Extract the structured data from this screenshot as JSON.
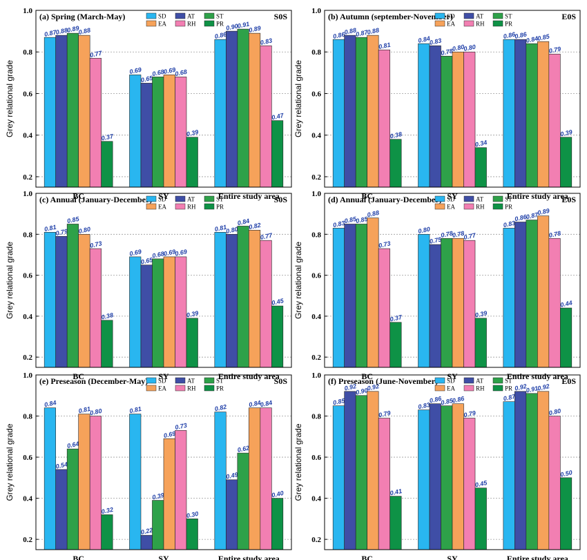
{
  "figure": {
    "series_names": [
      "SD",
      "AT",
      "ST",
      "EA",
      "RH",
      "PR"
    ],
    "colors": {
      "SD": "#29b6f0",
      "AT": "#3f4ea6",
      "ST": "#2ea149",
      "EA": "#f6a25a",
      "RH": "#f27fb2",
      "PR": "#0e9246"
    },
    "y_axis_label": "Grey relational grade",
    "y_ticks": [
      "0.2",
      "0.4",
      "0.6",
      "0.8",
      "1.0"
    ]
  },
  "chart_data": [
    {
      "type": "bar",
      "title": "(a)  Spring (March-May)",
      "tag": "S0S",
      "categories": [
        "BC",
        "SY",
        "Entire study area"
      ],
      "ylabel": "Grey relational grade",
      "ylim": [
        0.15,
        1.0
      ],
      "grid": true,
      "legend": "top-right",
      "series": [
        {
          "name": "SD",
          "values": [
            0.87,
            0.69,
            0.86
          ]
        },
        {
          "name": "AT",
          "values": [
            0.88,
            0.65,
            0.9
          ]
        },
        {
          "name": "ST",
          "values": [
            0.89,
            0.68,
            0.91
          ]
        },
        {
          "name": "EA",
          "values": [
            0.88,
            0.69,
            0.89
          ]
        },
        {
          "name": "RH",
          "values": [
            0.77,
            0.68,
            0.83
          ]
        },
        {
          "name": "PR",
          "values": [
            0.37,
            0.39,
            0.47
          ]
        }
      ]
    },
    {
      "type": "bar",
      "title": "(b)  Autumn (september-November)",
      "tag": "E0S",
      "categories": [
        "BC",
        "SY",
        "Entire study area"
      ],
      "ylabel": "Grey relational grade",
      "ylim": [
        0.15,
        1.0
      ],
      "grid": true,
      "legend": "top-right",
      "series": [
        {
          "name": "SD",
          "values": [
            0.86,
            0.84,
            0.86
          ]
        },
        {
          "name": "AT",
          "values": [
            0.88,
            0.83,
            0.86
          ]
        },
        {
          "name": "ST",
          "values": [
            0.87,
            0.78,
            0.84
          ]
        },
        {
          "name": "EA",
          "values": [
            0.88,
            0.8,
            0.85
          ]
        },
        {
          "name": "RH",
          "values": [
            0.81,
            0.8,
            0.79
          ]
        },
        {
          "name": "PR",
          "values": [
            0.38,
            0.34,
            0.39
          ]
        }
      ]
    },
    {
      "type": "bar",
      "title": "(c)  Annual (January-December)",
      "tag": "S0S",
      "categories": [
        "BC",
        "SY",
        "Entire study area"
      ],
      "ylabel": "Grey relational grade",
      "ylim": [
        0.15,
        1.0
      ],
      "grid": true,
      "legend": "top-right",
      "series": [
        {
          "name": "SD",
          "values": [
            0.81,
            0.69,
            0.81
          ]
        },
        {
          "name": "AT",
          "values": [
            0.79,
            0.65,
            0.8
          ]
        },
        {
          "name": "ST",
          "values": [
            0.85,
            0.68,
            0.84
          ]
        },
        {
          "name": "EA",
          "values": [
            0.8,
            0.69,
            0.82
          ]
        },
        {
          "name": "RH",
          "values": [
            0.73,
            0.69,
            0.77
          ]
        },
        {
          "name": "PR",
          "values": [
            0.38,
            0.39,
            0.45
          ]
        }
      ]
    },
    {
      "type": "bar",
      "title": "(d)  Annual (January-December)",
      "tag": "E0S",
      "categories": [
        "BC",
        "SY",
        "Entire study area"
      ],
      "ylabel": "Grey relational grade",
      "ylim": [
        0.15,
        1.0
      ],
      "grid": true,
      "legend": "top-right",
      "series": [
        {
          "name": "SD",
          "values": [
            0.83,
            0.8,
            0.83
          ]
        },
        {
          "name": "AT",
          "values": [
            0.85,
            0.75,
            0.86
          ]
        },
        {
          "name": "ST",
          "values": [
            0.85,
            0.78,
            0.87
          ]
        },
        {
          "name": "EA",
          "values": [
            0.88,
            0.78,
            0.89
          ]
        },
        {
          "name": "RH",
          "values": [
            0.73,
            0.77,
            0.78
          ]
        },
        {
          "name": "PR",
          "values": [
            0.37,
            0.39,
            0.44
          ]
        }
      ]
    },
    {
      "type": "bar",
      "title": "(e)  Preseason (December-May)",
      "tag": "S0S",
      "categories": [
        "BC",
        "SY",
        "Entire study area"
      ],
      "ylabel": "Grey relational grade",
      "ylim": [
        0.15,
        1.0
      ],
      "grid": true,
      "legend": "top-right",
      "series": [
        {
          "name": "SD",
          "values": [
            0.84,
            0.81,
            0.82
          ]
        },
        {
          "name": "AT",
          "values": [
            0.54,
            0.22,
            0.49
          ]
        },
        {
          "name": "ST",
          "values": [
            0.64,
            0.39,
            0.62
          ]
        },
        {
          "name": "EA",
          "values": [
            0.81,
            0.69,
            0.84
          ]
        },
        {
          "name": "RH",
          "values": [
            0.8,
            0.73,
            0.84
          ]
        },
        {
          "name": "PR",
          "values": [
            0.32,
            0.3,
            0.4
          ]
        }
      ]
    },
    {
      "type": "bar",
      "title": "(f)  Preseason (June-November)",
      "tag": "E0S",
      "categories": [
        "BC",
        "SY",
        "Entire study area"
      ],
      "ylabel": "Grey relational grade",
      "ylim": [
        0.15,
        1.0
      ],
      "grid": true,
      "legend": "top-right",
      "series": [
        {
          "name": "SD",
          "values": [
            0.85,
            0.83,
            0.87
          ]
        },
        {
          "name": "AT",
          "values": [
            0.92,
            0.86,
            0.92
          ]
        },
        {
          "name": "ST",
          "values": [
            0.9,
            0.85,
            0.91
          ]
        },
        {
          "name": "EA",
          "values": [
            0.92,
            0.86,
            0.92
          ]
        },
        {
          "name": "RH",
          "values": [
            0.79,
            0.79,
            0.8
          ]
        },
        {
          "name": "PR",
          "values": [
            0.41,
            0.45,
            0.5
          ]
        }
      ]
    }
  ]
}
